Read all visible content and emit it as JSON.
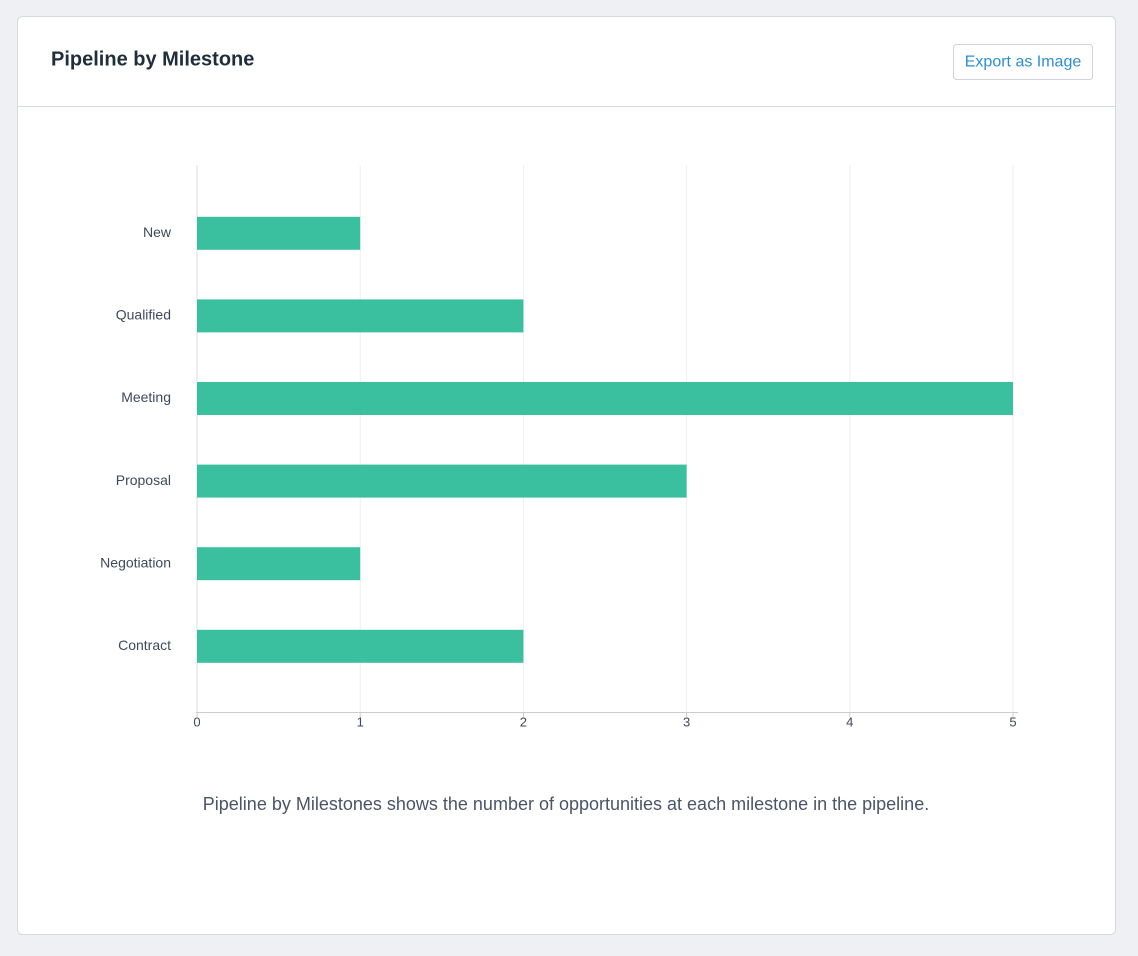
{
  "header": {
    "title": "Pipeline by Milestone",
    "button": "Export as Image"
  },
  "chart_data": {
    "type": "bar",
    "orientation": "horizontal",
    "categories": [
      "New",
      "Qualified",
      "Meeting",
      "Proposal",
      "Negotiation",
      "Contract"
    ],
    "values": [
      1,
      2,
      5,
      3,
      1,
      2
    ],
    "color": "#3ac09f",
    "xlim": [
      0,
      5
    ],
    "xticks": [
      0,
      1,
      2,
      3,
      4,
      5
    ],
    "grid": true
  },
  "description": "Pipeline by Milestones shows the number of opportunities at each milestone in the pipeline."
}
